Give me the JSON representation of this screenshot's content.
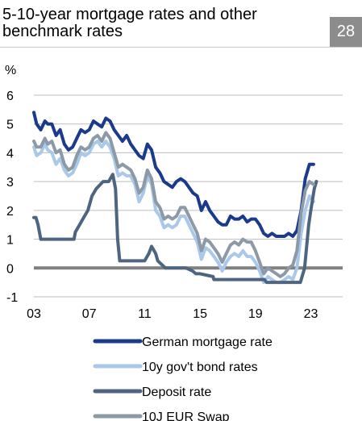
{
  "header": {
    "title": "5-10-year mortgage rates and other benchmark rates",
    "badge": "28"
  },
  "chart_data": {
    "type": "line",
    "title": "5-10-year mortgage rates and other benchmark rates",
    "ylabel": "%",
    "xlabel": "",
    "ylim": [
      -1,
      6
    ],
    "xlim": [
      2003,
      2025.3
    ],
    "yticks": [
      -1,
      0,
      1,
      2,
      3,
      4,
      5,
      6
    ],
    "xticks": [
      {
        "value": 2003,
        "label": "03"
      },
      {
        "value": 2007,
        "label": "07"
      },
      {
        "value": 2011,
        "label": "11"
      },
      {
        "value": 2015,
        "label": "15"
      },
      {
        "value": 2019,
        "label": "19"
      },
      {
        "value": 2023,
        "label": "23"
      }
    ],
    "grid": "horizontal",
    "legend_position": "bottom",
    "zero_line_color": "#808080",
    "series": [
      {
        "name": "German mortgage rate",
        "color": "#1b3a8c",
        "x": [
          2003.0,
          2003.2,
          2003.5,
          2003.8,
          2004.0,
          2004.3,
          2004.6,
          2004.9,
          2005.2,
          2005.5,
          2005.8,
          2006.1,
          2006.4,
          2006.7,
          2007.0,
          2007.3,
          2007.6,
          2007.9,
          2008.2,
          2008.5,
          2008.8,
          2009.1,
          2009.4,
          2009.7,
          2010.0,
          2010.3,
          2010.6,
          2010.9,
          2011.2,
          2011.5,
          2011.8,
          2012.1,
          2012.4,
          2012.7,
          2013.0,
          2013.3,
          2013.6,
          2013.9,
          2014.2,
          2014.5,
          2014.8,
          2015.1,
          2015.4,
          2015.7,
          2016.0,
          2016.3,
          2016.6,
          2016.9,
          2017.2,
          2017.5,
          2017.8,
          2018.1,
          2018.4,
          2018.7,
          2019.0,
          2019.3,
          2019.6,
          2019.9,
          2020.2,
          2020.5,
          2020.8,
          2021.1,
          2021.4,
          2021.7,
          2022.0,
          2022.3,
          2022.6,
          2022.9,
          2023.2
        ],
        "y": [
          5.4,
          5.0,
          4.8,
          5.1,
          5.0,
          5.0,
          4.6,
          4.8,
          4.3,
          4.1,
          4.2,
          4.5,
          4.8,
          4.7,
          4.8,
          5.1,
          5.0,
          4.9,
          5.2,
          5.1,
          4.8,
          4.6,
          4.4,
          4.6,
          4.3,
          4.1,
          3.9,
          3.8,
          4.3,
          4.1,
          3.5,
          3.3,
          3.0,
          2.9,
          2.8,
          3.0,
          3.1,
          3.0,
          2.8,
          2.6,
          2.5,
          2.0,
          2.3,
          2.0,
          1.8,
          1.6,
          1.5,
          1.5,
          1.8,
          1.7,
          1.7,
          1.8,
          1.6,
          1.7,
          1.7,
          1.5,
          1.2,
          1.1,
          1.2,
          1.1,
          1.1,
          1.1,
          1.2,
          1.1,
          1.3,
          2.0,
          3.1,
          3.6,
          3.6
        ]
      },
      {
        "name": "10y gov't bond rates",
        "color": "#a9c8ea",
        "x": [
          2003.0,
          2003.2,
          2003.5,
          2003.8,
          2004.0,
          2004.3,
          2004.6,
          2004.9,
          2005.2,
          2005.5,
          2005.8,
          2006.1,
          2006.4,
          2006.7,
          2007.0,
          2007.3,
          2007.6,
          2007.9,
          2008.2,
          2008.5,
          2008.8,
          2009.1,
          2009.4,
          2009.7,
          2010.0,
          2010.3,
          2010.6,
          2010.9,
          2011.2,
          2011.5,
          2011.8,
          2012.1,
          2012.4,
          2012.7,
          2013.0,
          2013.3,
          2013.6,
          2013.9,
          2014.2,
          2014.5,
          2014.8,
          2015.1,
          2015.4,
          2015.7,
          2016.0,
          2016.3,
          2016.6,
          2016.9,
          2017.2,
          2017.5,
          2017.8,
          2018.1,
          2018.4,
          2018.7,
          2019.0,
          2019.3,
          2019.6,
          2019.9,
          2020.2,
          2020.5,
          2020.8,
          2021.1,
          2021.4,
          2021.7,
          2022.0,
          2022.3,
          2022.6,
          2022.9,
          2023.2
        ],
        "y": [
          4.2,
          3.9,
          4.0,
          4.3,
          4.1,
          4.0,
          3.6,
          3.8,
          3.4,
          3.2,
          3.3,
          3.6,
          4.0,
          3.9,
          4.0,
          4.3,
          4.4,
          4.2,
          4.4,
          4.2,
          3.8,
          3.2,
          3.3,
          3.2,
          3.2,
          2.9,
          2.3,
          2.6,
          3.2,
          2.9,
          2.0,
          1.8,
          1.4,
          1.5,
          1.4,
          1.5,
          1.8,
          1.8,
          1.5,
          1.2,
          0.9,
          0.3,
          0.7,
          0.6,
          0.4,
          0.2,
          -0.1,
          0.2,
          0.4,
          0.5,
          0.4,
          0.6,
          0.4,
          0.4,
          0.2,
          -0.1,
          -0.5,
          -0.3,
          -0.4,
          -0.5,
          -0.5,
          -0.4,
          -0.3,
          -0.4,
          0.0,
          1.2,
          2.0,
          2.5,
          2.3
        ]
      },
      {
        "name": "Deposit rate",
        "color": "#4d6580",
        "x": [
          2003.0,
          2003.15,
          2003.3,
          2003.5,
          2004.0,
          2005.0,
          2005.9,
          2006.0,
          2006.3,
          2006.6,
          2006.9,
          2007.2,
          2007.5,
          2008.0,
          2008.4,
          2008.7,
          2008.9,
          2009.05,
          2009.2,
          2009.35,
          2009.6,
          2010.0,
          2010.5,
          2011.0,
          2011.3,
          2011.5,
          2011.8,
          2011.95,
          2012.5,
          2013.0,
          2014.0,
          2014.45,
          2014.7,
          2015.0,
          2015.95,
          2016.0,
          2016.25,
          2017.0,
          2019.65,
          2019.8,
          2020.5,
          2021.5,
          2022.25,
          2022.55,
          2022.85,
          2023.0,
          2023.25,
          2023.4
        ],
        "y": [
          1.75,
          1.75,
          1.5,
          1.0,
          1.0,
          1.0,
          1.0,
          1.25,
          1.5,
          1.75,
          2.0,
          2.5,
          2.75,
          3.0,
          3.0,
          3.25,
          2.75,
          1.0,
          0.25,
          0.25,
          0.25,
          0.25,
          0.25,
          0.25,
          0.5,
          0.75,
          0.5,
          0.25,
          0.0,
          0.0,
          0.0,
          -0.1,
          -0.2,
          -0.2,
          -0.3,
          -0.4,
          -0.4,
          -0.4,
          -0.4,
          -0.5,
          -0.5,
          -0.5,
          -0.5,
          0.0,
          1.5,
          2.0,
          2.75,
          3.0
        ]
      },
      {
        "name": "10J EUR Swap",
        "color": "#8c9aa8",
        "x": [
          2003.0,
          2003.2,
          2003.5,
          2003.8,
          2004.0,
          2004.3,
          2004.6,
          2004.9,
          2005.2,
          2005.5,
          2005.8,
          2006.1,
          2006.4,
          2006.7,
          2007.0,
          2007.3,
          2007.6,
          2007.9,
          2008.2,
          2008.5,
          2008.8,
          2009.1,
          2009.4,
          2009.7,
          2010.0,
          2010.3,
          2010.6,
          2010.9,
          2011.2,
          2011.5,
          2011.8,
          2012.1,
          2012.4,
          2012.7,
          2013.0,
          2013.3,
          2013.6,
          2013.9,
          2014.2,
          2014.5,
          2014.8,
          2015.1,
          2015.4,
          2015.7,
          2016.0,
          2016.3,
          2016.6,
          2016.9,
          2017.2,
          2017.5,
          2017.8,
          2018.1,
          2018.4,
          2018.7,
          2019.0,
          2019.3,
          2019.6,
          2019.9,
          2020.2,
          2020.5,
          2020.8,
          2021.1,
          2021.4,
          2021.7,
          2022.0,
          2022.3,
          2022.6,
          2022.9,
          2023.2
        ],
        "y": [
          4.4,
          4.2,
          4.2,
          4.5,
          4.3,
          4.4,
          4.0,
          4.1,
          3.6,
          3.4,
          3.5,
          3.9,
          4.2,
          4.1,
          4.2,
          4.5,
          4.6,
          4.4,
          4.7,
          4.5,
          4.0,
          3.5,
          3.6,
          3.5,
          3.4,
          3.1,
          2.6,
          2.8,
          3.4,
          3.1,
          2.3,
          2.1,
          1.7,
          1.8,
          1.7,
          1.8,
          2.1,
          2.1,
          1.8,
          1.5,
          1.2,
          0.6,
          1.0,
          0.9,
          0.7,
          0.5,
          0.2,
          0.5,
          0.8,
          0.9,
          0.8,
          1.0,
          0.9,
          0.9,
          0.6,
          0.2,
          -0.2,
          0.0,
          -0.1,
          -0.2,
          -0.3,
          -0.2,
          0.0,
          0.1,
          0.6,
          1.9,
          2.7,
          3.0,
          2.9
        ]
      }
    ]
  }
}
